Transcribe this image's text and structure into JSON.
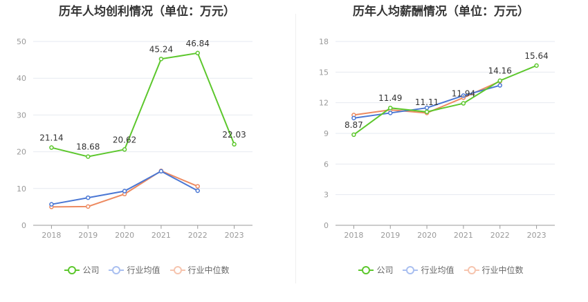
{
  "colors": {
    "company": "#5cc72c",
    "industry_avg": "#4a77d4",
    "industry_median": "#ed8a60"
  },
  "legend": [
    "公司",
    "行业均值",
    "行业中位数"
  ],
  "chart_data": [
    {
      "type": "line",
      "title": "历年人均创利情况（单位：万元）",
      "categories": [
        "2018",
        "2019",
        "2020",
        "2021",
        "2022",
        "2023"
      ],
      "ylim": [
        0,
        50
      ],
      "yticks": [
        0,
        10,
        20,
        30,
        40,
        50
      ],
      "grid": true,
      "legend_position": "bottom",
      "series": [
        {
          "name": "公司",
          "values": [
            21.14,
            18.68,
            20.62,
            45.24,
            46.84,
            22.03
          ],
          "labels": [
            "21.14",
            "18.68",
            "20.62",
            "45.24",
            "46.84",
            "22.03"
          ]
        },
        {
          "name": "行业均值",
          "values": [
            5.7,
            7.5,
            9.3,
            14.7,
            9.4,
            null
          ]
        },
        {
          "name": "行业中位数",
          "values": [
            5.0,
            5.1,
            8.5,
            14.8,
            10.6,
            null
          ]
        }
      ]
    },
    {
      "type": "line",
      "title": "历年人均薪酬情况（单位：万元）",
      "categories": [
        "2018",
        "2019",
        "2020",
        "2021",
        "2022",
        "2023"
      ],
      "ylim": [
        0,
        18
      ],
      "yticks": [
        0,
        3,
        6,
        9,
        12,
        15,
        18
      ],
      "grid": true,
      "legend_position": "bottom",
      "series": [
        {
          "name": "公司",
          "values": [
            8.87,
            11.49,
            11.11,
            11.94,
            14.16,
            15.64
          ],
          "labels": [
            "8.87",
            "11.49",
            "11.11",
            "11.94",
            "14.16",
            "15.64"
          ]
        },
        {
          "name": "行业均值",
          "values": [
            10.5,
            11.0,
            11.5,
            12.7,
            13.7,
            null
          ]
        },
        {
          "name": "行业中位数",
          "values": [
            10.8,
            11.3,
            11.0,
            12.5,
            14.1,
            null
          ]
        }
      ]
    }
  ]
}
